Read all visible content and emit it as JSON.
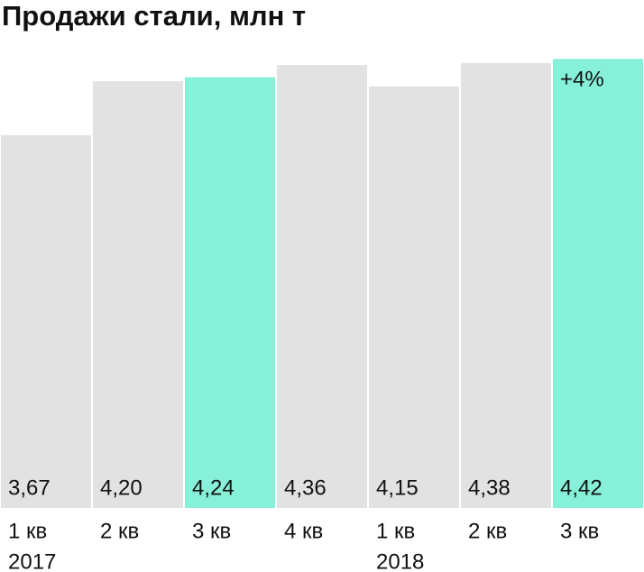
{
  "chart_data": {
    "type": "bar",
    "title": "Продажи стали, млн т",
    "categories": [
      "1 кв",
      "2 кв",
      "3 кв",
      "4 кв",
      "1 кв",
      "2 кв",
      "3 кв"
    ],
    "category_years": [
      "2017",
      null,
      null,
      null,
      "2018",
      null,
      null
    ],
    "values": [
      3.67,
      4.2,
      4.24,
      4.36,
      4.15,
      4.38,
      4.42
    ],
    "value_labels": [
      "3,67",
      "4,20",
      "4,24",
      "4,36",
      "4,15",
      "4,38",
      "4,42"
    ],
    "colors": [
      "#e2e2e2",
      "#e2e2e2",
      "#86f0d8",
      "#e2e2e2",
      "#e2e2e2",
      "#e2e2e2",
      "#86f0d8"
    ],
    "annotation": "+4%",
    "ylim": [
      0,
      5
    ]
  }
}
